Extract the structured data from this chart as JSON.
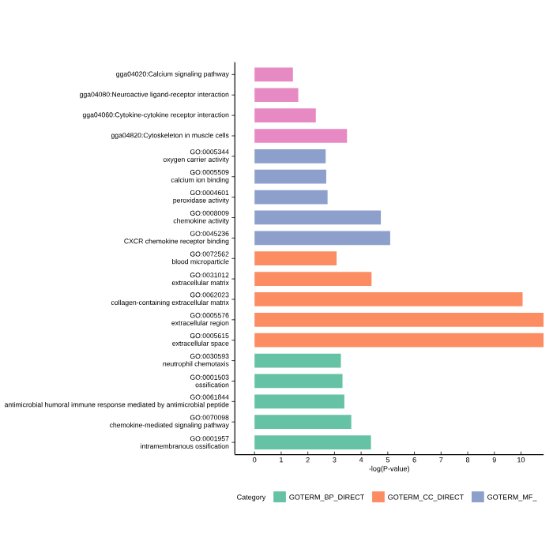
{
  "chart_data": {
    "type": "bar",
    "orientation": "horizontal",
    "xlabel": "-log(P-value)",
    "legend_title": "Category",
    "legend": "bottom",
    "categories": [
      "gga04020:Calcium signaling pathway",
      "gga04080:Neuroactive ligand-receptor interaction",
      "gga04060:Cytokine-cytokine receptor interaction",
      "gga04820:Cytoskeleton in muscle cells",
      "GO:0005344\noxygen carrier activity",
      "GO:0005509\ncalcium ion binding",
      "GO:0004601\nperoxidase activity",
      "GO:0008009\nchemokine activity",
      "GO:0045236\nCXCR chemokine receptor binding",
      "GO:0072562\nblood microparticle",
      "GO:0031012\nextracellular matrix",
      "GO:0062023\ncollagen-containing extracellular matrix",
      "GO:0005576\nextracellular region",
      "GO:0005615\nextracellular space",
      "GO:0030593\nneutrophil chemotaxis",
      "GO:0001503\nossification",
      "GO:0061844\nantimicrobial humoral immune response mediated by antimicrobial peptide",
      "GO:0070098\nchemokine-mediated signaling pathway",
      "GO:0001957\nintramembranous ossification"
    ],
    "series": [
      {
        "name": "GOTERM_BP_DIRECT",
        "color": "#66c2a5",
        "values": [
          null,
          null,
          null,
          null,
          null,
          null,
          null,
          null,
          null,
          null,
          null,
          null,
          null,
          null,
          3.24,
          3.3,
          3.37,
          3.63,
          4.37
        ]
      },
      {
        "name": "GOTERM_CC_DIRECT",
        "color": "#fc8d62",
        "values": [
          null,
          null,
          null,
          null,
          null,
          null,
          null,
          null,
          null,
          3.08,
          4.39,
          10.06,
          10.85,
          10.85,
          null,
          null,
          null,
          null,
          null
        ]
      },
      {
        "name": "GOTERM_MF_",
        "color": "#8da0cb",
        "values": [
          null,
          null,
          null,
          null,
          2.67,
          2.69,
          2.74,
          4.74,
          5.09,
          null,
          null,
          null,
          null,
          null,
          null,
          null,
          null,
          null,
          null
        ]
      },
      {
        "color": "#e78ac3",
        "values": [
          1.44,
          1.64,
          2.3,
          3.47,
          null,
          null,
          null,
          null,
          null,
          null,
          null,
          null,
          null,
          null,
          null,
          null,
          null,
          null,
          null
        ]
      }
    ],
    "xlim": [
      -0.74,
      10.85
    ],
    "xticks": [
      0,
      1,
      2,
      3,
      4,
      5,
      6,
      7,
      8,
      9,
      10
    ]
  }
}
